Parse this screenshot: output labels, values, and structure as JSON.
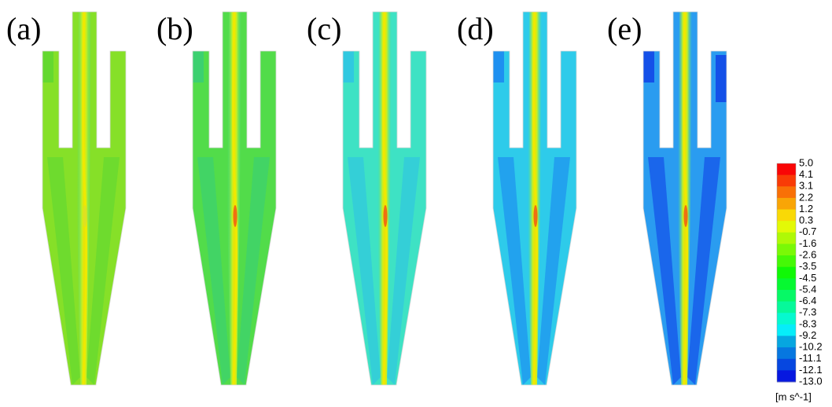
{
  "panels": {
    "labels": [
      "(a)",
      "(b)",
      "(c)",
      "(d)",
      "(e)"
    ]
  },
  "colorbar": {
    "labels": [
      "5.0",
      "4.1",
      "3.1",
      "2.2",
      "1.2",
      "0.3",
      "-0.7",
      "-1.6",
      "-2.6",
      "-3.5",
      "-4.5",
      "-5.4",
      "-6.4",
      "-7.3",
      "-8.3",
      "-9.2",
      "-10.2",
      "-11.1",
      "-12.1",
      "-13.0"
    ],
    "unit": "[m s^-1]"
  }
}
